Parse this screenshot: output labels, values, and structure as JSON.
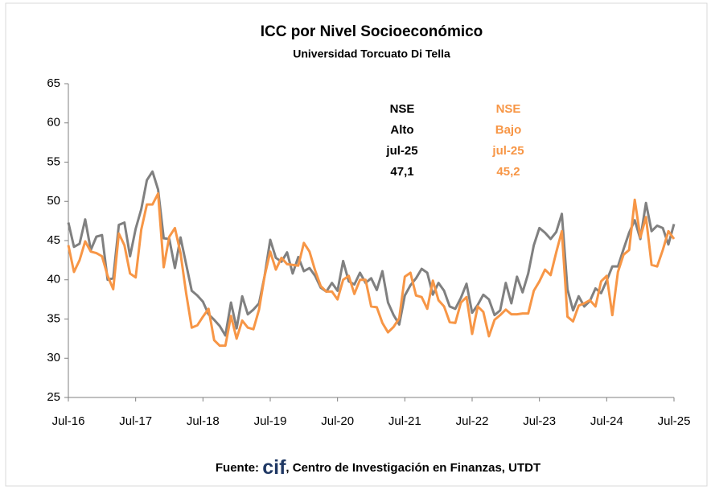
{
  "chart_data": {
    "type": "line",
    "title": "ICC por Nivel Socioeconómico",
    "subtitle": "Universidad Torcuato Di Tella",
    "categories": [
      "Jul-16",
      null,
      null,
      null,
      null,
      null,
      null,
      null,
      null,
      null,
      null,
      null,
      "Jul-17",
      null,
      null,
      null,
      null,
      null,
      null,
      null,
      null,
      null,
      null,
      null,
      "Jul-18",
      null,
      null,
      null,
      null,
      null,
      null,
      null,
      null,
      null,
      null,
      null,
      "Jul-19",
      null,
      null,
      null,
      null,
      null,
      null,
      null,
      null,
      null,
      null,
      null,
      "Jul-20",
      null,
      null,
      null,
      null,
      null,
      null,
      null,
      null,
      null,
      null,
      null,
      "Jul-21",
      null,
      null,
      null,
      null,
      null,
      null,
      null,
      null,
      null,
      null,
      null,
      "Jul-22",
      null,
      null,
      null,
      null,
      null,
      null,
      null,
      null,
      null,
      null,
      null,
      "Jul-23",
      null,
      null,
      null,
      null,
      null,
      null,
      null,
      null,
      null,
      null,
      null,
      "Jul-24",
      null,
      null,
      null,
      null,
      null,
      null,
      null,
      null,
      null,
      null,
      null,
      "Jul-25"
    ],
    "series": [
      {
        "color": "#808080",
        "values": [
          47.3,
          44.2,
          44.6,
          47.7,
          43.8,
          45.5,
          45.7,
          40.0,
          40.2,
          47.0,
          47.3,
          43.0,
          46.5,
          49.0,
          52.7,
          53.8,
          51.5,
          45.3,
          45.2,
          41.5,
          45.4,
          42.0,
          38.6,
          38.0,
          37.2,
          35.6,
          34.9,
          34.1,
          32.9,
          37.1,
          33.8,
          37.9,
          35.6,
          36.2,
          37.0,
          40.5,
          45.1,
          42.8,
          42.3,
          43.5,
          40.8,
          42.9,
          41.1,
          41.5,
          40.5,
          39.0,
          38.5,
          39.6,
          38.6,
          42.4,
          39.8,
          39.4,
          40.9,
          39.6,
          40.2,
          38.7,
          41.1,
          37.1,
          35.5,
          34.3,
          38.0,
          39.3,
          40.2,
          41.4,
          40.9,
          38.1,
          39.6,
          38.6,
          36.6,
          36.3,
          37.7,
          39.5,
          35.8,
          36.8,
          38.1,
          37.5,
          35.5,
          36.1,
          39.6,
          37.0,
          40.4,
          38.4,
          40.8,
          44.4,
          46.6,
          46.0,
          45.2,
          46.1,
          48.4,
          38.8,
          36.1,
          37.9,
          36.6,
          37.3,
          38.9,
          38.3,
          39.9,
          41.7,
          41.7,
          43.9,
          46.0,
          47.6,
          45.2,
          49.8,
          46.2,
          46.9,
          46.6,
          44.5,
          47.1
        ]
      },
      {
        "color": "#f79646",
        "values": [
          44.4,
          41.0,
          42.5,
          44.9,
          43.6,
          43.4,
          43.0,
          40.5,
          38.8,
          45.9,
          44.4,
          40.8,
          40.3,
          46.4,
          49.6,
          49.6,
          51.0,
          41.6,
          45.5,
          46.6,
          43.4,
          38.3,
          33.9,
          34.2,
          35.3,
          36.3,
          32.3,
          31.6,
          31.6,
          35.4,
          32.5,
          34.8,
          33.9,
          33.7,
          36.2,
          40.5,
          43.6,
          41.3,
          42.8,
          42.0,
          41.9,
          41.8,
          44.7,
          43.6,
          41.2,
          39.2,
          38.5,
          38.5,
          37.5,
          40.0,
          40.5,
          38.2,
          40.0,
          40.0,
          36.6,
          36.5,
          34.5,
          33.3,
          34.0,
          35.1,
          40.4,
          40.9,
          38.0,
          37.8,
          36.3,
          39.9,
          37.4,
          36.6,
          34.6,
          34.5,
          37.1,
          37.8,
          33.1,
          36.6,
          35.9,
          32.8,
          34.9,
          35.5,
          36.2,
          35.6,
          35.6,
          35.7,
          35.7,
          38.6,
          39.8,
          41.3,
          40.6,
          43.5,
          46.2,
          35.3,
          34.7,
          36.7,
          37.0,
          37.4,
          36.6,
          39.8,
          40.5,
          35.5,
          41.0,
          43.2,
          43.8,
          50.2,
          45.4,
          48.0,
          41.9,
          41.7,
          43.8,
          46.2,
          45.2
        ]
      }
    ],
    "ylim": [
      25,
      65
    ],
    "yticks": [
      25,
      30,
      35,
      40,
      45,
      50,
      55,
      60,
      65
    ],
    "grid": false,
    "annotations": [
      {
        "color": "#000000",
        "lines": [
          "NSE",
          "Alto",
          "jul-25",
          "47,1"
        ]
      },
      {
        "color": "#f79646",
        "lines": [
          "NSE",
          "Bajo",
          "jul-25",
          "45,2"
        ]
      }
    ],
    "source": {
      "prefix": "Fuente: ",
      "logo": "cif",
      "suffix": ", Centro de Investigación en Finanzas, UTDT"
    }
  }
}
